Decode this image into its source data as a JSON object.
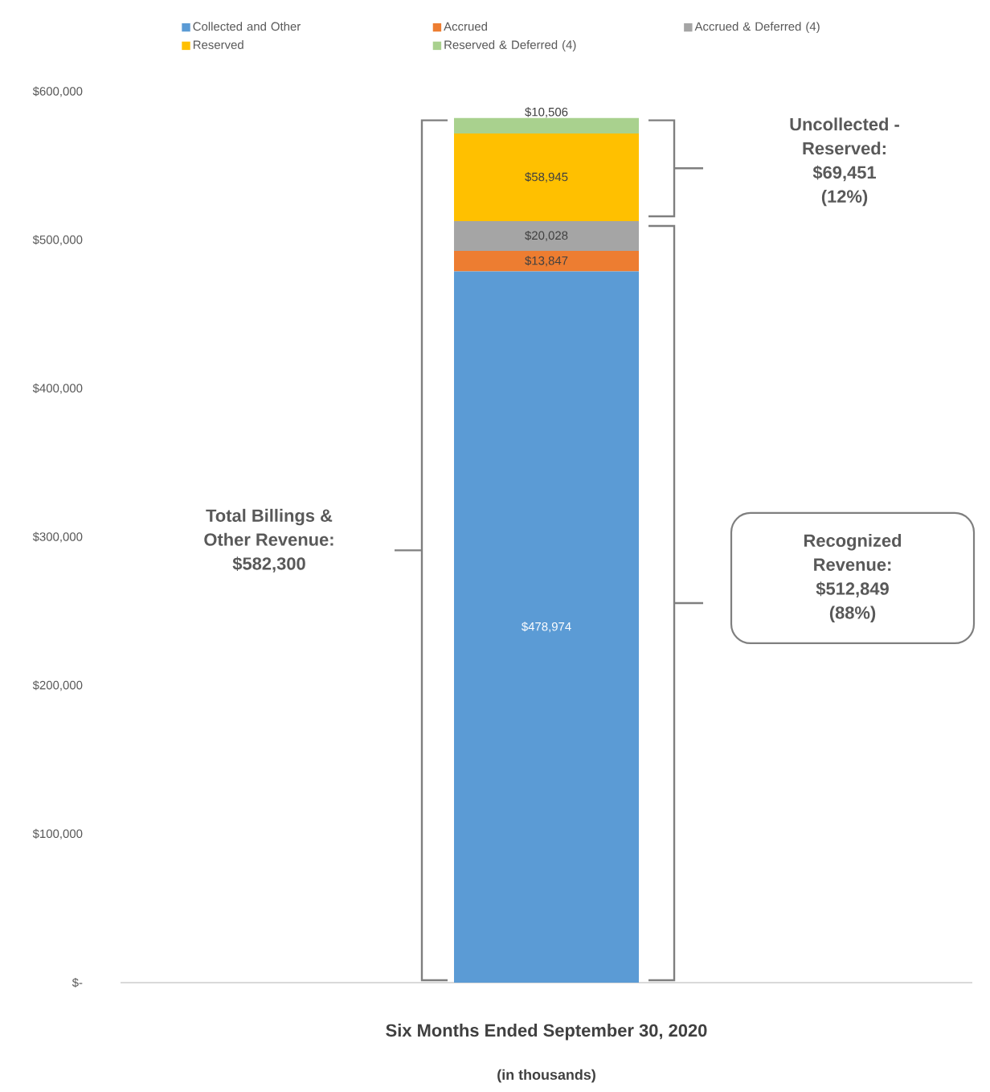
{
  "chart_data": {
    "type": "bar",
    "stacked": true,
    "categories": [
      "Six Months Ended September 30, 2020"
    ],
    "series": [
      {
        "name": "Collected and Other",
        "color": "#5b9bd5",
        "values": [
          478974
        ],
        "value_labels": [
          "$478,974"
        ]
      },
      {
        "name": "Accrued",
        "color": "#ed7d31",
        "values": [
          13847
        ],
        "value_labels": [
          "$13,847"
        ]
      },
      {
        "name": "Accrued & Deferred (4)",
        "color": "#a5a5a5",
        "values": [
          20028
        ],
        "value_labels": [
          "$20,028"
        ]
      },
      {
        "name": "Reserved",
        "color": "#ffc000",
        "values": [
          58945
        ],
        "value_labels": [
          "$58,945"
        ]
      },
      {
        "name": "Reserved & Deferred (4)",
        "color": "#a9d18e",
        "values": [
          10506
        ],
        "value_labels": [
          "$10,506"
        ]
      }
    ],
    "ylim": [
      0,
      600000
    ],
    "yticks": [
      {
        "value": 0,
        "label": "$-"
      },
      {
        "value": 100000,
        "label": "$100,000"
      },
      {
        "value": 200000,
        "label": "$200,000"
      },
      {
        "value": 300000,
        "label": "$300,000"
      },
      {
        "value": 400000,
        "label": "$400,000"
      },
      {
        "value": 500000,
        "label": "$500,000"
      },
      {
        "value": 600000,
        "label": "$600,000"
      }
    ],
    "legend": "top",
    "annotations": [
      "Total Billings & Other Revenue: $582,300",
      "Uncollected - Reserved: $69,451 (12%)",
      "Recognized Revenue: $512,849 (88%)",
      "(in thousands)"
    ]
  }
}
